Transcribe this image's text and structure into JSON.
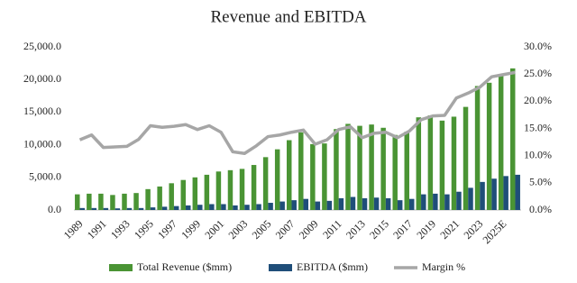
{
  "chart_data": {
    "type": "bar",
    "title": "Revenue and EBITDA",
    "categories": [
      "1989",
      null,
      "1991",
      null,
      "1993",
      null,
      "1995",
      null,
      "1997",
      null,
      "1999",
      null,
      "2001",
      null,
      "2003",
      null,
      "2005",
      null,
      "2007",
      null,
      "2009",
      null,
      "2011",
      null,
      "2013",
      null,
      "2015",
      null,
      "2017",
      null,
      "2019",
      null,
      "2021",
      null,
      "2023",
      null,
      "2025E",
      null
    ],
    "series": [
      {
        "name": "Total Revenue ($mm)",
        "type": "bar",
        "color": "#4a9434",
        "values": [
          2400,
          2500,
          2500,
          2300,
          2500,
          2600,
          3200,
          3600,
          4100,
          4600,
          5000,
          5400,
          5900,
          6100,
          6300,
          6900,
          8100,
          9300,
          10700,
          11900,
          10100,
          10200,
          12400,
          13200,
          12900,
          13100,
          12600,
          11500,
          12000,
          14200,
          14500,
          13700,
          14300,
          15800,
          19000,
          19500,
          20800,
          21700
        ]
      },
      {
        "name": "EBITDA ($mm)",
        "type": "bar",
        "color": "#1f4e79",
        "values": [
          300,
          300,
          300,
          250,
          300,
          300,
          400,
          500,
          600,
          700,
          800,
          900,
          900,
          700,
          800,
          900,
          1100,
          1300,
          1500,
          1700,
          1300,
          1400,
          1800,
          2000,
          1800,
          1900,
          1800,
          1500,
          1700,
          2400,
          2500,
          2400,
          2800,
          3400,
          4300,
          4800,
          5200,
          5400
        ]
      },
      {
        "name": "Margin %",
        "type": "line",
        "axis": "y2",
        "color": "#a6a6a6",
        "values": [
          12.9,
          13.8,
          11.5,
          11.6,
          11.7,
          13.0,
          15.5,
          15.2,
          15.4,
          15.7,
          14.8,
          15.5,
          14.3,
          10.7,
          10.4,
          11.8,
          13.5,
          13.8,
          14.3,
          14.7,
          12.1,
          12.9,
          14.8,
          15.3,
          13.3,
          14.1,
          14.3,
          13.3,
          14.5,
          16.6,
          17.3,
          17.4,
          20.6,
          21.5,
          22.6,
          24.5,
          24.9,
          25.3
        ]
      }
    ],
    "ylim": [
      0,
      25000
    ],
    "yticks": [
      {
        "value": 0,
        "label": "0.0"
      },
      {
        "value": 5000,
        "label": "5,000.0"
      },
      {
        "value": 10000,
        "label": "10,000.0"
      },
      {
        "value": 15000,
        "label": "15,000.0"
      },
      {
        "value": 20000,
        "label": "20,000.0"
      },
      {
        "value": 25000,
        "label": "25,000.0"
      }
    ],
    "y2lim": [
      0,
      30
    ],
    "y2ticks": [
      {
        "value": 0,
        "label": "0.0%"
      },
      {
        "value": 5,
        "label": "5.0%"
      },
      {
        "value": 10,
        "label": "10.0%"
      },
      {
        "value": 15,
        "label": "15.0%"
      },
      {
        "value": 20,
        "label": "20.0%"
      },
      {
        "value": 25,
        "label": "25.0%"
      },
      {
        "value": 30,
        "label": "30.0%"
      }
    ],
    "grid": false,
    "legend": "bottom"
  }
}
